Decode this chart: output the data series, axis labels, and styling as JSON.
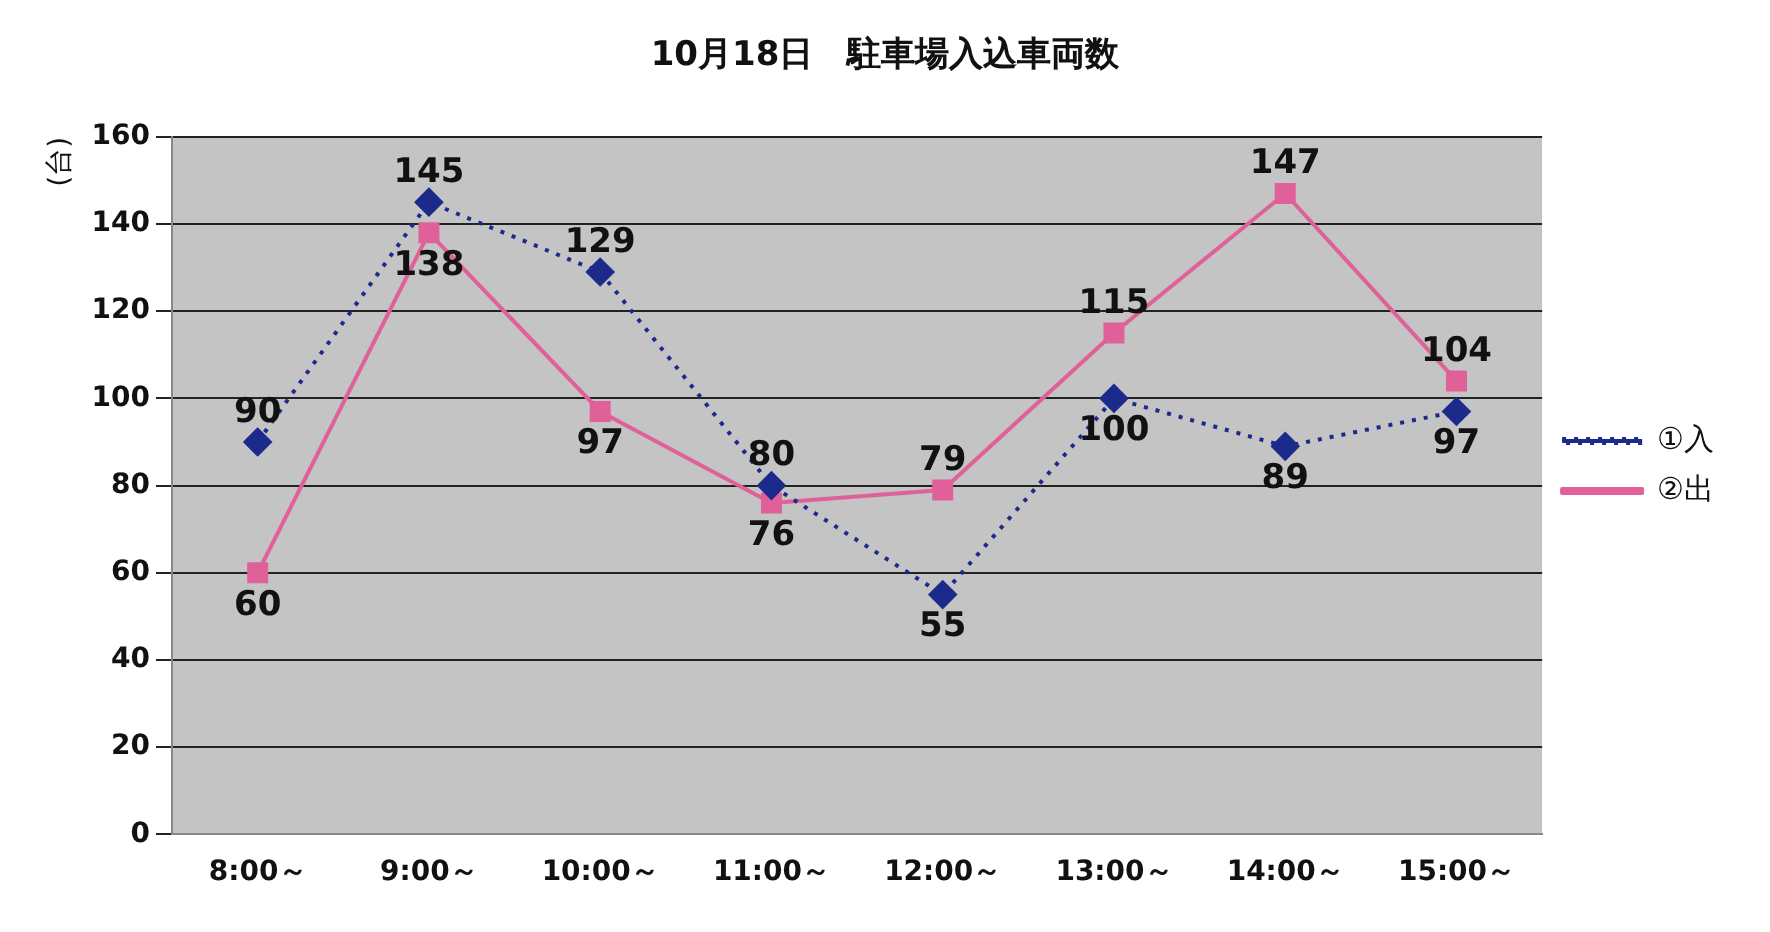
{
  "chart_data": {
    "type": "line",
    "title": "10月18日　駐車場入込車両数",
    "ylabel": "(台)",
    "categories": [
      "8:00～",
      "9:00～",
      "10:00～",
      "11:00～",
      "12:00～",
      "13:00～",
      "14:00～",
      "15:00～"
    ],
    "series": [
      {
        "name": "①入",
        "color": "#1c2a8c",
        "marker": "diamond",
        "line_style": "dotted",
        "values": [
          90,
          145,
          129,
          80,
          55,
          100,
          89,
          97
        ]
      },
      {
        "name": "②出",
        "color": "#e0609a",
        "marker": "square",
        "line_style": "solid",
        "values": [
          60,
          138,
          97,
          76,
          79,
          115,
          147,
          104
        ]
      }
    ],
    "ylim": [
      0,
      160
    ],
    "yticks": [
      0,
      20,
      40,
      60,
      80,
      100,
      120,
      140,
      160
    ],
    "grid": "y",
    "legend": "right",
    "data_labels": true
  }
}
